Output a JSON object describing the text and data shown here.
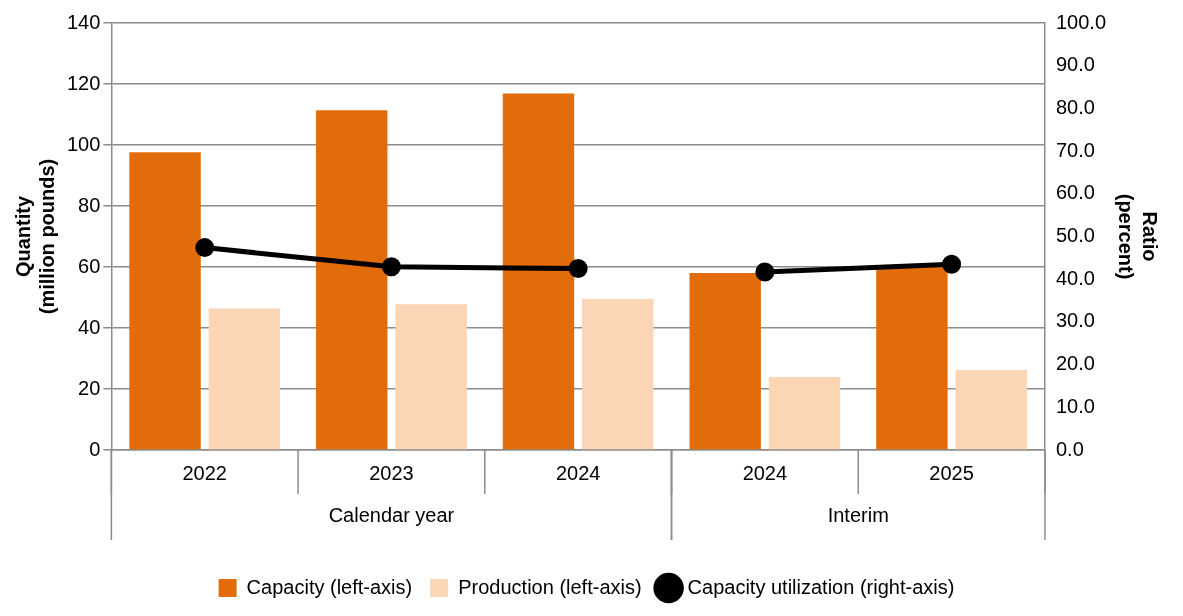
{
  "chart_data": {
    "type": "bar",
    "categories": [
      "2022",
      "2023",
      "2024",
      "2024",
      "2025"
    ],
    "ylabel": "Quantity\n(million pounds)",
    "y2label": "Ratio\n(percent)",
    "series": [
      {
        "name": "Capacity (left-axis)",
        "color": "#e36c0a",
        "values": [
          97.6,
          111.4,
          116.9,
          58.0,
          60.3
        ]
      },
      {
        "name": "Production (left-axis)",
        "color": "#fcd5b5",
        "values": [
          46.4,
          47.8,
          49.5,
          23.9,
          26.2
        ]
      },
      {
        "name": "Capacity utilization (right-axis)",
        "type": "line",
        "axis": "y2",
        "color": "#000000",
        "values": [
          47.4,
          42.9,
          42.5,
          null,
          null
        ]
      },
      {
        "type": "line",
        "axis": "y2",
        "color": "#000000",
        "values": [
          null,
          null,
          null,
          41.7,
          43.5
        ]
      }
    ],
    "ylim": [
      0,
      140
    ],
    "yticks": [
      0,
      20,
      40,
      60,
      80,
      100,
      120,
      140
    ],
    "y2lim": [
      0,
      100
    ],
    "y2ticks": [
      {
        "value": 0,
        "label": "0.0"
      },
      {
        "value": 10,
        "label": "10.0"
      },
      {
        "value": 20,
        "label": "20.0"
      },
      {
        "value": 30,
        "label": "30.0"
      },
      {
        "value": 40,
        "label": "40.0"
      },
      {
        "value": 50,
        "label": "50.0"
      },
      {
        "value": 60,
        "label": "60.0"
      },
      {
        "value": 70,
        "label": "70.0"
      },
      {
        "value": 80,
        "label": "80.0"
      },
      {
        "value": 90,
        "label": "90.0"
      },
      {
        "value": 100,
        "label": "100.0"
      }
    ],
    "annotations": [
      "Calendar year",
      "Interim"
    ],
    "grid": "y",
    "legend": "bottom",
    "marker": "circle",
    "line_style": "solid"
  }
}
